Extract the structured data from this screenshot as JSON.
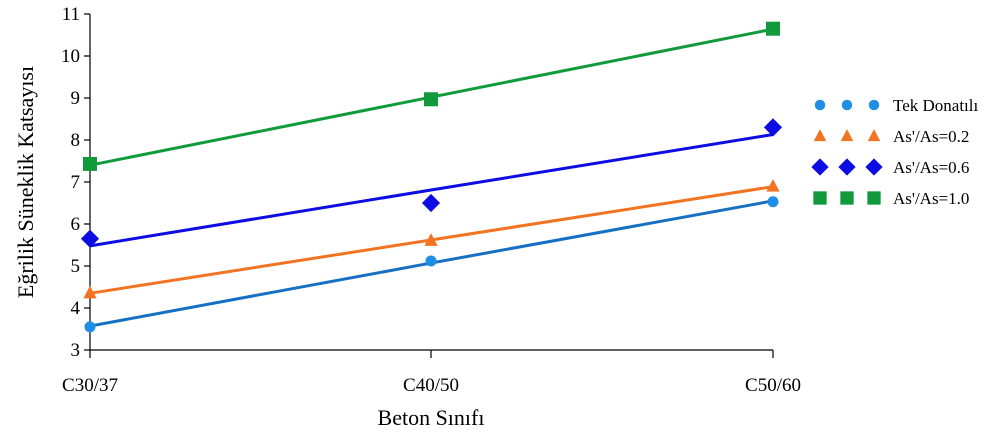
{
  "chart_data": {
    "type": "scatter",
    "title": "",
    "xlabel": "Beton Sınıfı",
    "ylabel": "Eğrilik Süneklik Katsayısı",
    "categories": [
      "C30/37",
      "C40/50",
      "C50/60"
    ],
    "ylim": [
      3,
      11
    ],
    "yticks": [
      3,
      4,
      5,
      6,
      7,
      8,
      9,
      10,
      11
    ],
    "grid": false,
    "legend_position": "right",
    "series": [
      {
        "name": "Tek Donatılı",
        "marker": "circle",
        "color": "#1f8fe6",
        "line_color": "#1570c4",
        "values": [
          3.55,
          5.12,
          6.53
        ],
        "trendline": [
          3.57,
          5.07,
          6.55
        ]
      },
      {
        "name": "As'/As=0.2",
        "marker": "triangle",
        "color": "#f27321",
        "line_color": "#f27321",
        "values": [
          4.36,
          5.61,
          6.9
        ],
        "trendline": [
          4.35,
          5.62,
          6.89
        ]
      },
      {
        "name": "As'/As=0.6",
        "marker": "diamond",
        "color": "#0d0de3",
        "line_color": "#0d0de3",
        "values": [
          5.65,
          6.5,
          8.3
        ],
        "trendline": [
          5.48,
          6.81,
          8.13
        ]
      },
      {
        "name": "As'/As=1.0",
        "marker": "square",
        "color": "#119a3c",
        "line_color": "#119a3c",
        "values": [
          7.43,
          8.97,
          10.65
        ],
        "trendline": [
          7.4,
          9.02,
          10.64
        ]
      }
    ]
  }
}
